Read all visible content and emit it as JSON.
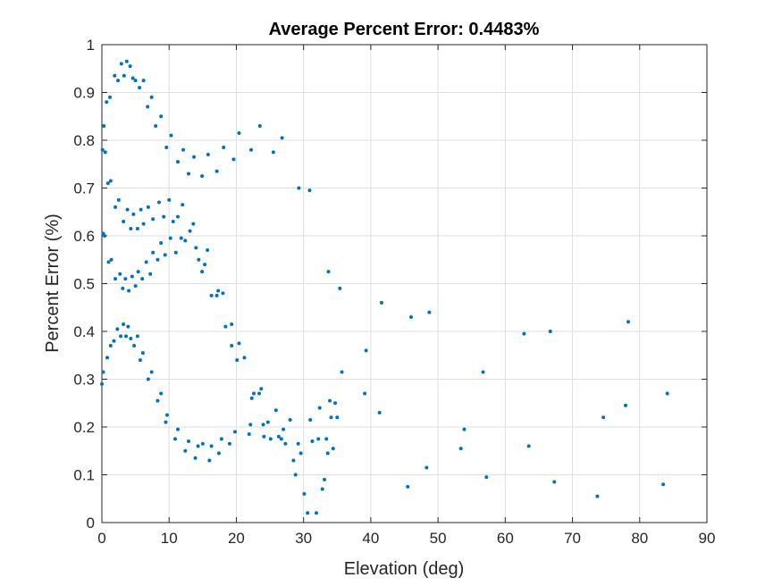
{
  "chart_data": {
    "type": "scatter",
    "title": "Average Percent Error: 0.4483%",
    "xlabel": "Elevation (deg)",
    "ylabel": "Percent Error (%)",
    "xlim": [
      0,
      90
    ],
    "ylim": [
      0,
      1
    ],
    "xticks": [
      "0",
      "10",
      "20",
      "30",
      "40",
      "50",
      "60",
      "70",
      "80",
      "90"
    ],
    "yticks": [
      "0",
      "0.1",
      "0.2",
      "0.3",
      "0.4",
      "0.5",
      "0.6",
      "0.7",
      "0.8",
      "0.9",
      "1"
    ],
    "grid": true,
    "marker_color": "#0072BD",
    "points": [
      [
        0.1,
        0.78
      ],
      [
        0.3,
        0.83
      ],
      [
        0.5,
        0.775
      ],
      [
        0.7,
        0.88
      ],
      [
        1.2,
        0.89
      ],
      [
        1.9,
        0.935
      ],
      [
        2.4,
        0.925
      ],
      [
        2.9,
        0.96
      ],
      [
        3.3,
        0.935
      ],
      [
        3.7,
        0.965
      ],
      [
        4.2,
        0.955
      ],
      [
        4.6,
        0.93
      ],
      [
        5.0,
        0.925
      ],
      [
        5.6,
        0.91
      ],
      [
        6.2,
        0.925
      ],
      [
        6.8,
        0.87
      ],
      [
        7.4,
        0.89
      ],
      [
        8.0,
        0.83
      ],
      [
        8.8,
        0.85
      ],
      [
        9.6,
        0.785
      ],
      [
        10.3,
        0.81
      ],
      [
        11.3,
        0.755
      ],
      [
        12.1,
        0.78
      ],
      [
        12.9,
        0.73
      ],
      [
        13.7,
        0.765
      ],
      [
        14.9,
        0.725
      ],
      [
        15.8,
        0.77
      ],
      [
        17.1,
        0.735
      ],
      [
        18.1,
        0.785
      ],
      [
        19.6,
        0.76
      ],
      [
        20.4,
        0.815
      ],
      [
        22.2,
        0.78
      ],
      [
        23.5,
        0.83
      ],
      [
        25.5,
        0.775
      ],
      [
        26.8,
        0.805
      ],
      [
        0.2,
        0.605
      ],
      [
        0.9,
        0.71
      ],
      [
        1.3,
        0.715
      ],
      [
        2.0,
        0.66
      ],
      [
        2.5,
        0.675
      ],
      [
        3.2,
        0.63
      ],
      [
        3.8,
        0.655
      ],
      [
        4.3,
        0.615
      ],
      [
        4.7,
        0.645
      ],
      [
        5.3,
        0.615
      ],
      [
        5.8,
        0.655
      ],
      [
        6.2,
        0.625
      ],
      [
        6.9,
        0.66
      ],
      [
        7.6,
        0.635
      ],
      [
        8.5,
        0.67
      ],
      [
        9.2,
        0.64
      ],
      [
        10.0,
        0.675
      ],
      [
        10.6,
        0.63
      ],
      [
        11.3,
        0.64
      ],
      [
        12.0,
        0.665
      ],
      [
        12.4,
        0.59
      ],
      [
        13.1,
        0.61
      ],
      [
        13.6,
        0.625
      ],
      [
        14.0,
        0.575
      ],
      [
        14.4,
        0.55
      ],
      [
        14.9,
        0.525
      ],
      [
        15.3,
        0.54
      ],
      [
        15.7,
        0.57
      ],
      [
        16.3,
        0.475
      ],
      [
        17.1,
        0.475
      ],
      [
        17.3,
        0.485
      ],
      [
        18.0,
        0.48
      ],
      [
        18.4,
        0.41
      ],
      [
        19.3,
        0.415
      ],
      [
        0.4,
        0.6
      ],
      [
        1.0,
        0.545
      ],
      [
        1.4,
        0.55
      ],
      [
        2.0,
        0.51
      ],
      [
        2.7,
        0.52
      ],
      [
        3.1,
        0.49
      ],
      [
        3.5,
        0.51
      ],
      [
        4.0,
        0.485
      ],
      [
        4.5,
        0.515
      ],
      [
        5.0,
        0.495
      ],
      [
        5.4,
        0.525
      ],
      [
        6.0,
        0.51
      ],
      [
        6.6,
        0.545
      ],
      [
        7.2,
        0.52
      ],
      [
        7.6,
        0.565
      ],
      [
        8.3,
        0.55
      ],
      [
        8.8,
        0.585
      ],
      [
        9.4,
        0.56
      ],
      [
        10.2,
        0.595
      ],
      [
        11.0,
        0.565
      ],
      [
        11.8,
        0.595
      ],
      [
        0.0,
        0.29
      ],
      [
        0.2,
        0.315
      ],
      [
        0.8,
        0.345
      ],
      [
        1.3,
        0.37
      ],
      [
        1.8,
        0.38
      ],
      [
        2.3,
        0.405
      ],
      [
        2.8,
        0.39
      ],
      [
        3.2,
        0.415
      ],
      [
        3.6,
        0.39
      ],
      [
        3.9,
        0.41
      ],
      [
        4.3,
        0.385
      ],
      [
        4.8,
        0.37
      ],
      [
        5.3,
        0.39
      ],
      [
        5.7,
        0.34
      ],
      [
        6.1,
        0.355
      ],
      [
        6.9,
        0.3
      ],
      [
        7.4,
        0.315
      ],
      [
        8.3,
        0.255
      ],
      [
        8.8,
        0.27
      ],
      [
        9.5,
        0.21
      ],
      [
        9.7,
        0.225
      ],
      [
        10.9,
        0.175
      ],
      [
        11.3,
        0.195
      ],
      [
        12.4,
        0.15
      ],
      [
        12.9,
        0.17
      ],
      [
        13.9,
        0.135
      ],
      [
        14.3,
        0.16
      ],
      [
        15.0,
        0.165
      ],
      [
        16.0,
        0.13
      ],
      [
        16.3,
        0.16
      ],
      [
        17.4,
        0.145
      ],
      [
        17.8,
        0.175
      ],
      [
        19.0,
        0.165
      ],
      [
        19.3,
        0.37
      ],
      [
        19.8,
        0.19
      ],
      [
        20.1,
        0.34
      ],
      [
        20.4,
        0.375
      ],
      [
        21.2,
        0.345
      ],
      [
        21.9,
        0.185
      ],
      [
        22.1,
        0.205
      ],
      [
        22.3,
        0.26
      ],
      [
        22.6,
        0.27
      ],
      [
        23.4,
        0.27
      ],
      [
        23.7,
        0.28
      ],
      [
        24.0,
        0.205
      ],
      [
        24.1,
        0.18
      ],
      [
        24.7,
        0.21
      ],
      [
        25.1,
        0.175
      ],
      [
        25.9,
        0.235
      ],
      [
        26.3,
        0.18
      ],
      [
        26.7,
        0.175
      ],
      [
        27.0,
        0.195
      ],
      [
        27.3,
        0.165
      ],
      [
        28.0,
        0.215
      ],
      [
        28.5,
        0.13
      ],
      [
        28.8,
        0.1
      ],
      [
        29.2,
        0.165
      ],
      [
        29.6,
        0.145
      ],
      [
        30.1,
        0.06
      ],
      [
        30.6,
        0.02
      ],
      [
        31.0,
        0.215
      ],
      [
        31.3,
        0.17
      ],
      [
        31.9,
        0.02
      ],
      [
        32.2,
        0.175
      ],
      [
        32.4,
        0.24
      ],
      [
        32.8,
        0.07
      ],
      [
        33.1,
        0.09
      ],
      [
        33.4,
        0.175
      ],
      [
        33.6,
        0.145
      ],
      [
        33.9,
        0.255
      ],
      [
        34.1,
        0.22
      ],
      [
        34.4,
        0.155
      ],
      [
        34.7,
        0.25
      ],
      [
        35.0,
        0.22
      ],
      [
        29.3,
        0.7
      ],
      [
        30.9,
        0.695
      ],
      [
        33.7,
        0.525
      ],
      [
        35.4,
        0.49
      ],
      [
        35.7,
        0.315
      ],
      [
        39.1,
        0.27
      ],
      [
        39.3,
        0.36
      ],
      [
        41.3,
        0.23
      ],
      [
        41.6,
        0.46
      ],
      [
        45.5,
        0.075
      ],
      [
        46.0,
        0.43
      ],
      [
        48.3,
        0.115
      ],
      [
        48.7,
        0.44
      ],
      [
        53.4,
        0.155
      ],
      [
        53.9,
        0.195
      ],
      [
        56.7,
        0.315
      ],
      [
        57.2,
        0.095
      ],
      [
        62.8,
        0.395
      ],
      [
        63.5,
        0.16
      ],
      [
        66.7,
        0.4
      ],
      [
        67.3,
        0.085
      ],
      [
        73.7,
        0.055
      ],
      [
        74.6,
        0.22
      ],
      [
        77.9,
        0.245
      ],
      [
        78.3,
        0.42
      ],
      [
        83.5,
        0.08
      ],
      [
        84.1,
        0.27
      ]
    ]
  }
}
